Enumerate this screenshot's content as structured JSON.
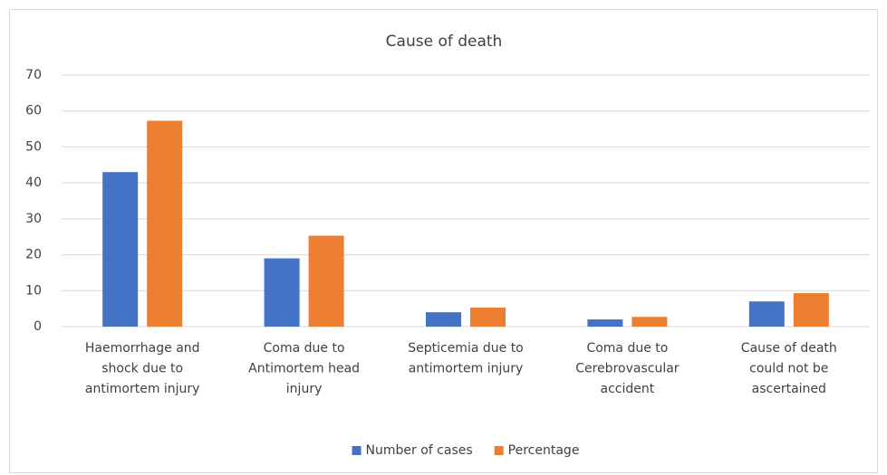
{
  "chart_data": {
    "type": "bar",
    "title": "Cause of death",
    "categories": [
      "Haemorrhage and shock due to antimortem injury",
      "Coma due to Antimortem head injury",
      "Septicemia due to antimortem injury",
      "Coma due to Cerebrovascular accident",
      "Cause of death could not be ascertained"
    ],
    "series": [
      {
        "name": "Number of cases",
        "color": "#4472c4",
        "values": [
          43,
          19,
          4,
          2,
          7
        ]
      },
      {
        "name": "Percentage",
        "color": "#ed7d31",
        "values": [
          57.3,
          25.3,
          5.3,
          2.7,
          9.3
        ]
      }
    ],
    "ylim": [
      0,
      70
    ],
    "yticks": [
      0,
      10,
      20,
      30,
      40,
      50,
      60,
      70
    ],
    "grid": true,
    "legend": "bottom"
  }
}
